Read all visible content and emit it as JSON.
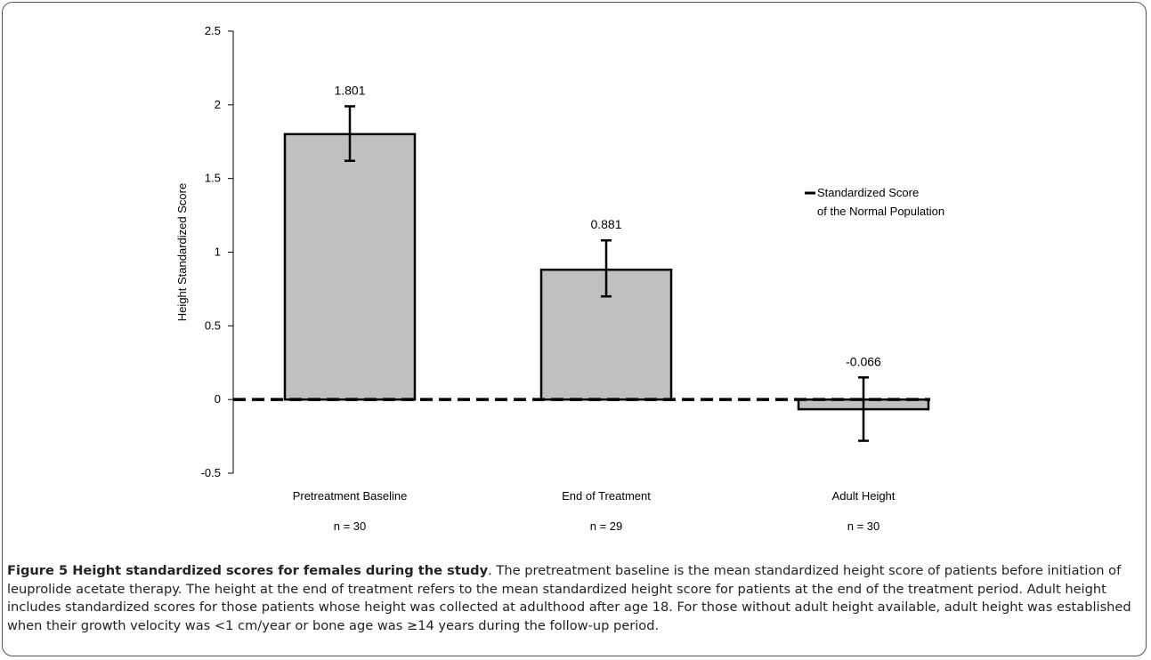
{
  "chart_data": {
    "type": "bar",
    "title": "",
    "ylabel": "Height Standardized Score",
    "xlabel": "",
    "ylim": [
      -0.5,
      2.5
    ],
    "yticks": [
      "2.5",
      "2",
      "1.5",
      "1",
      "0.5",
      "0",
      "-0.5"
    ],
    "categories": [
      "Pretreatment Baseline",
      "End of Treatment",
      "Adult Height"
    ],
    "n_labels": [
      "n = 30",
      "n = 29",
      "n = 30"
    ],
    "values": [
      1.801,
      0.881,
      -0.066
    ],
    "value_labels": [
      "1.801",
      "0.881",
      "-0.066"
    ],
    "error_low": [
      1.62,
      0.7,
      -0.28
    ],
    "error_high": [
      1.99,
      1.08,
      0.15
    ],
    "reference_line": {
      "value": 0,
      "style": "dashed"
    },
    "legend": {
      "label_line1": "Standardized Score",
      "label_line2": "of the Normal Population",
      "position": "right"
    },
    "grid": false,
    "colors": {
      "bar_fill": "#c0c0c0",
      "bar_stroke": "#000000",
      "reference": "#000000"
    }
  },
  "caption": {
    "label": "Figure 5 Height standardized scores for females during the study",
    "text": ". The pretreatment baseline is the mean standardized height score of patients before initiation of leuprolide acetate therapy. The height at the end of treatment refers to the mean standardized height score for patients at the end of the treatment period. Adult height includes standardized scores for those patients whose height was collected at adulthood after age 18. For those without adult height available, adult height was established when their growth velocity was <1 cm/year or bone age was ≥14 years during the follow-up period."
  }
}
